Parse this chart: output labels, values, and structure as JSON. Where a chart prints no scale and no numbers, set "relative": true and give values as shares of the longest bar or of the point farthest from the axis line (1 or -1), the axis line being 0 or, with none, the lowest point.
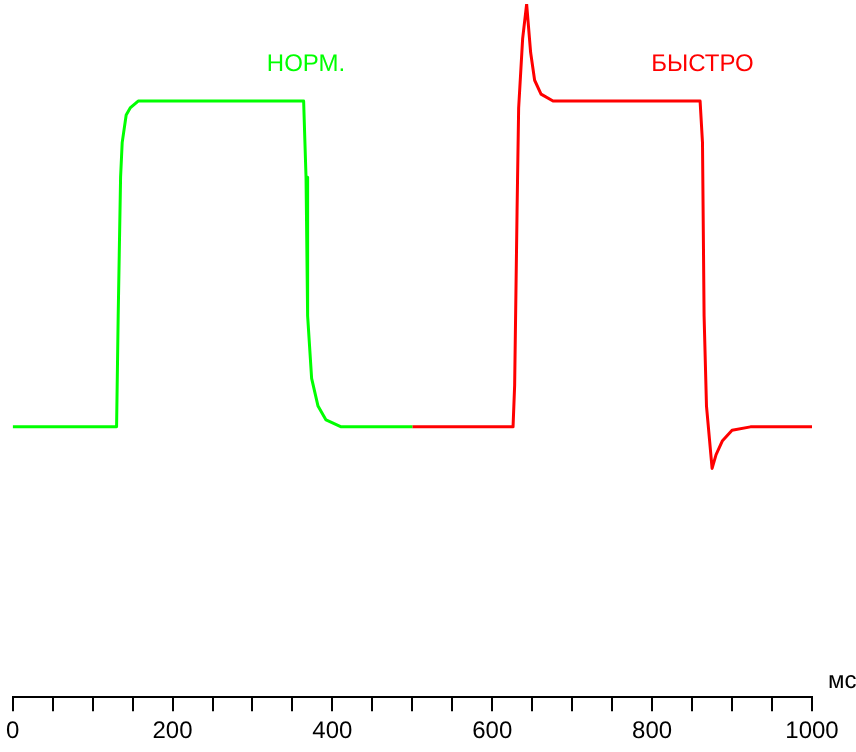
{
  "chart_data": {
    "type": "line",
    "relative": true,
    "xlabel": "мс",
    "marker": "none",
    "line_style": "solid",
    "xlim": [
      0,
      1000
    ],
    "xticks": [
      0,
      {
        "value": 50,
        "label": null
      },
      {
        "value": 100,
        "label": null
      },
      {
        "value": 150,
        "label": null
      },
      200,
      {
        "value": 250,
        "label": null
      },
      {
        "value": 300,
        "label": null
      },
      {
        "value": 350,
        "label": null
      },
      400,
      {
        "value": 450,
        "label": null
      },
      {
        "value": 500,
        "label": null
      },
      {
        "value": 550,
        "label": null
      },
      600,
      {
        "value": 650,
        "label": null
      },
      {
        "value": 700,
        "label": null
      },
      {
        "value": 750,
        "label": null
      },
      800,
      {
        "value": 850,
        "label": null
      },
      {
        "value": 900,
        "label": null
      },
      {
        "value": 950,
        "label": null
      },
      1000
    ],
    "series": [
      {
        "name": "НОРМ.",
        "color": "#00ff00",
        "x": [
          0,
          127,
          130,
          132,
          135,
          137,
          142,
          147,
          157,
          364,
          367,
          369,
          374,
          382,
          392,
          411,
          500
        ],
        "values": [
          0.39,
          0.39,
          0.39,
          0.55,
          0.75,
          0.8,
          0.84,
          0.85,
          0.86,
          0.86,
          0.75,
          0.55,
          0.46,
          0.42,
          0.4,
          0.39,
          0.39
        ]
      },
      {
        "name": "БЫСТРО",
        "color": "#ff0000",
        "x": [
          500,
          626,
          628,
          631,
          633,
          638,
          643,
          648,
          653,
          661,
          676,
          860,
          863,
          865,
          868,
          875,
          880,
          888,
          900,
          923,
          1000
        ],
        "values": [
          0.39,
          0.39,
          0.45,
          0.7,
          0.85,
          0.95,
          1,
          0.93,
          0.89,
          0.87,
          0.86,
          0.86,
          0.8,
          0.55,
          0.42,
          0.33,
          0.35,
          0.37,
          0.385,
          0.39,
          0.39
        ]
      }
    ]
  }
}
